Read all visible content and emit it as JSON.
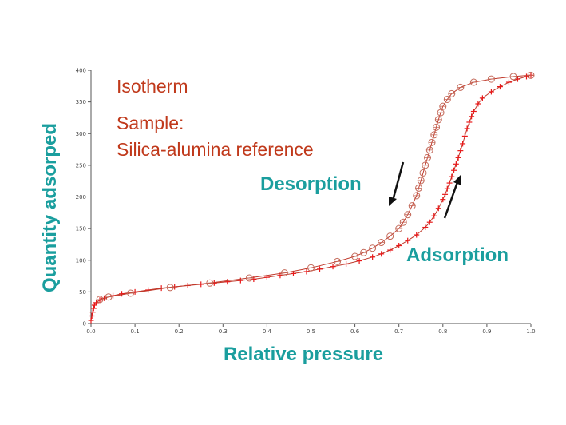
{
  "chart_data": {
    "type": "line",
    "title": "",
    "xlabel": "Relative pressure",
    "ylabel": "Quantity adsorped",
    "xlim": [
      0,
      1.0
    ],
    "ylim": [
      0,
      400
    ],
    "x_ticks": [
      "0.0",
      "0.1",
      "0.2",
      "0.3",
      "0.4",
      "0.5",
      "0.6",
      "0.7",
      "0.8",
      "0.9",
      "1.0"
    ],
    "y_ticks": [
      "0",
      "50",
      "100",
      "150",
      "200",
      "250",
      "300",
      "350",
      "400"
    ],
    "grid": false,
    "annotations": {
      "isotherm": "Isotherm",
      "sample_label": "Sample:",
      "sample_name": "Silica-alumina reference",
      "desorption": "Desorption",
      "adsorption": "Adsorption"
    },
    "colors": {
      "curve": "#c0392b",
      "adsorption_marker": "#e8191a",
      "desorption_marker": "#c46a5a",
      "annotation_red": "#c0391b",
      "annotation_teal": "#1a9e9e"
    },
    "series": [
      {
        "marker": "plus",
        "x": [
          0.0,
          0.002,
          0.004,
          0.006,
          0.008,
          0.012,
          0.02,
          0.03,
          0.05,
          0.07,
          0.1,
          0.13,
          0.16,
          0.19,
          0.22,
          0.25,
          0.28,
          0.31,
          0.34,
          0.37,
          0.4,
          0.43,
          0.46,
          0.49,
          0.52,
          0.55,
          0.58,
          0.61,
          0.64,
          0.66,
          0.68,
          0.7,
          0.72,
          0.74,
          0.76,
          0.77,
          0.78,
          0.79,
          0.8,
          0.805,
          0.81,
          0.815,
          0.82,
          0.825,
          0.83,
          0.835,
          0.84,
          0.845,
          0.85,
          0.855,
          0.86,
          0.865,
          0.87,
          0.88,
          0.89,
          0.91,
          0.93,
          0.95,
          0.97,
          0.99,
          1.0
        ],
        "y": [
          5,
          12,
          18,
          24,
          29,
          33,
          37,
          40,
          44,
          47,
          50,
          53,
          56,
          58,
          60,
          62,
          64,
          66,
          68,
          70,
          73,
          76,
          79,
          82,
          86,
          90,
          94,
          99,
          105,
          110,
          116,
          123,
          131,
          140,
          152,
          160,
          170,
          182,
          196,
          204,
          213,
          222,
          232,
          242,
          252,
          262,
          273,
          284,
          296,
          308,
          318,
          327,
          335,
          347,
          356,
          366,
          374,
          381,
          386,
          390,
          392
        ]
      },
      {
        "marker": "circle",
        "x": [
          1.0,
          0.96,
          0.91,
          0.87,
          0.84,
          0.82,
          0.81,
          0.8,
          0.795,
          0.79,
          0.785,
          0.78,
          0.775,
          0.77,
          0.765,
          0.76,
          0.755,
          0.75,
          0.745,
          0.74,
          0.73,
          0.72,
          0.71,
          0.7,
          0.68,
          0.66,
          0.64,
          0.62,
          0.6,
          0.56,
          0.5,
          0.44,
          0.36,
          0.27,
          0.18,
          0.09,
          0.04,
          0.02
        ],
        "y": [
          392,
          390,
          386,
          381,
          373,
          363,
          354,
          343,
          333,
          322,
          310,
          298,
          286,
          274,
          262,
          250,
          238,
          226,
          214,
          202,
          186,
          172,
          160,
          150,
          138,
          128,
          119,
          112,
          106,
          98,
          88,
          80,
          72,
          64,
          57,
          48,
          42,
          38
        ]
      }
    ]
  }
}
